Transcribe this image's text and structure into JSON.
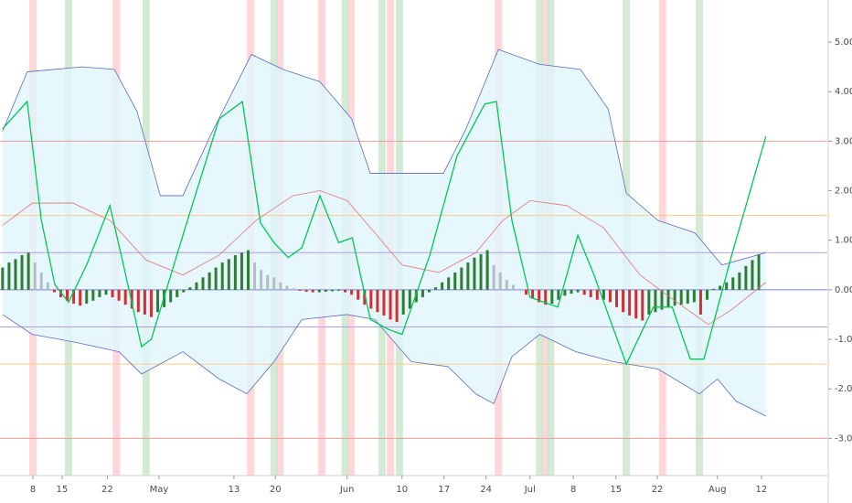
{
  "chart_data": {
    "type": "line",
    "xlim": [
      -0.4,
      127.6
    ],
    "ylim": [
      -3.75,
      5.85
    ],
    "yticks": [
      {
        "value": 5,
        "label": "5.00"
      },
      {
        "value": 4,
        "label": "4.00"
      },
      {
        "value": 3,
        "label": "3.00"
      },
      {
        "value": 2,
        "label": "2.00"
      },
      {
        "value": 1,
        "label": "1.00"
      },
      {
        "value": 0,
        "label": "0.00"
      },
      {
        "value": -1,
        "label": "-1.00"
      },
      {
        "value": -2,
        "label": "-2.00"
      },
      {
        "value": -3,
        "label": "-3.00"
      }
    ],
    "xticks": [
      {
        "value": 4.7,
        "label": "8"
      },
      {
        "value": 9.2,
        "label": "15"
      },
      {
        "value": 16.2,
        "label": "22"
      },
      {
        "value": 24.2,
        "label": "May"
      },
      {
        "value": 35.8,
        "label": "13"
      },
      {
        "value": 42.2,
        "label": "20"
      },
      {
        "value": 53.3,
        "label": "Jun"
      },
      {
        "value": 61.8,
        "label": "10"
      },
      {
        "value": 68.3,
        "label": "17"
      },
      {
        "value": 74.8,
        "label": "24"
      },
      {
        "value": 81.6,
        "label": "Jul"
      },
      {
        "value": 88.3,
        "label": "8"
      },
      {
        "value": 94.9,
        "label": "15"
      },
      {
        "value": 101.3,
        "label": "22"
      },
      {
        "value": 110.6,
        "label": "Aug"
      },
      {
        "value": 117.4,
        "label": "12"
      }
    ],
    "levels": [
      {
        "value": 3,
        "color": "#ef9a9a"
      },
      {
        "value": 1.5,
        "color": "#ffcc80"
      },
      {
        "value": 0.75,
        "color": "#b39ddb"
      },
      {
        "value": 0,
        "color": "#7986cb"
      },
      {
        "value": -0.75,
        "color": "#b39ddb"
      },
      {
        "value": -1.5,
        "color": "#ffcc80"
      },
      {
        "value": -3,
        "color": "#ef9a9a"
      }
    ],
    "highlights": {
      "red_color": "#ffcdd2",
      "green_color": "#c8e6c9",
      "red_x": [
        4.7,
        17.6,
        38.4,
        42.9,
        49.4,
        53.9,
        60,
        76.7,
        84,
        102.1
      ],
      "green_x": [
        10.2,
        22.2,
        42,
        53,
        58.7,
        61.4,
        83.1,
        84.8,
        96.5,
        107.8
      ]
    },
    "band_fill": "#e1f5fe",
    "histogram": {
      "up_color": "#2e7d32",
      "down_color": "#d32f2f",
      "fade_color": "#b0bec5",
      "values": [
        0.45,
        0.55,
        0.62,
        0.7,
        0.75,
        0.55,
        0.35,
        0.15,
        -0.05,
        -0.15,
        -0.22,
        -0.28,
        -0.32,
        -0.28,
        -0.22,
        -0.15,
        -0.1,
        -0.15,
        -0.22,
        -0.3,
        -0.38,
        -0.45,
        -0.5,
        -0.55,
        -0.45,
        -0.35,
        -0.25,
        -0.15,
        -0.05,
        0.05,
        0.15,
        0.25,
        0.35,
        0.45,
        0.55,
        0.62,
        0.7,
        0.75,
        0.8,
        0.55,
        0.4,
        0.3,
        0.25,
        0.15,
        0.08,
        0.03,
        -0.02,
        -0.04,
        -0.05,
        -0.05,
        -0.04,
        -0.03,
        -0.02,
        -0.05,
        -0.1,
        -0.2,
        -0.3,
        -0.38,
        -0.45,
        -0.52,
        -0.6,
        -0.65,
        -0.5,
        -0.38,
        -0.25,
        -0.15,
        -0.05,
        0.05,
        0.15,
        0.25,
        0.35,
        0.45,
        0.55,
        0.65,
        0.72,
        0.8,
        0.5,
        0.35,
        0.2,
        0.1,
        0.02,
        -0.1,
        -0.18,
        -0.25,
        -0.3,
        -0.28,
        -0.2,
        -0.12,
        -0.08,
        -0.05,
        -0.1,
        -0.15,
        -0.2,
        -0.2,
        -0.25,
        -0.35,
        -0.45,
        -0.52,
        -0.58,
        -0.62,
        -0.5,
        -0.45,
        -0.4,
        -0.35,
        -0.32,
        -0.3,
        -0.28,
        -0.25,
        -0.5,
        -0.2,
        0.02,
        0.08,
        0.15,
        0.25,
        0.35,
        0.48,
        0.6,
        0.72
      ]
    },
    "series": [
      {
        "color": "#5c6bc0",
        "x": [
          0,
          3.8,
          8.1,
          12.3,
          17.3,
          20.8,
          24.4,
          27.9,
          32.1,
          38.5,
          43.4,
          49.1,
          54,
          56.9,
          61.8,
          68.2,
          71.7,
          76.7,
          83.1,
          89.4,
          93.7,
          96.5,
          101.4,
          107.1,
          111.3,
          118.1
        ],
        "values": [
          3.2,
          4.4,
          4.45,
          4.5,
          4.45,
          3.6,
          1.9,
          1.9,
          3.1,
          4.75,
          4.45,
          4.2,
          3.45,
          2.35,
          2.35,
          2.35,
          3.25,
          4.85,
          4.55,
          4.45,
          3.65,
          1.95,
          1.4,
          1.15,
          0.5,
          0.75
        ]
      },
      {
        "color": "#5c6bc0",
        "x": [
          0,
          4.6,
          10.9,
          18,
          21.5,
          27.9,
          33.5,
          37.8,
          42,
          46.3,
          53.3,
          57.6,
          63.2,
          68.9,
          73.2,
          76,
          78.8,
          83.1,
          88.7,
          94.4,
          101.4,
          107.8,
          110.6,
          113.5,
          118.1
        ],
        "values": [
          -0.5,
          -0.9,
          -1.05,
          -1.25,
          -1.7,
          -1.25,
          -1.8,
          -2.1,
          -1.45,
          -0.6,
          -0.5,
          -0.6,
          -1.45,
          -1.55,
          -2.1,
          -2.3,
          -1.35,
          -0.9,
          -1.25,
          -1.45,
          -1.6,
          -2.1,
          -1.8,
          -2.25,
          -2.55
        ]
      },
      {
        "color": "#e57373",
        "x": [
          0,
          4.6,
          10.9,
          16.6,
          22.2,
          27.9,
          33.5,
          39.2,
          44.9,
          49.1,
          53.3,
          57.6,
          61.8,
          67.5,
          73.2,
          77.4,
          81.6,
          87.3,
          93,
          98.6,
          104.3,
          109.2,
          112.8,
          118.1
        ],
        "values": [
          1.3,
          1.75,
          1.75,
          1.4,
          0.6,
          0.3,
          0.7,
          1.4,
          1.9,
          2,
          1.8,
          1.15,
          0.5,
          0.35,
          0.75,
          1.4,
          1.8,
          1.7,
          1.25,
          0.3,
          -0.25,
          -0.7,
          -0.4,
          0.15
        ]
      },
      {
        "color": "#00c853",
        "x": [
          0,
          3.8,
          6,
          8.1,
          10.2,
          13,
          16.6,
          18.7,
          21.5,
          23,
          28.6,
          33.5,
          37.1,
          39.9,
          42,
          44.2,
          46.3,
          49.1,
          52,
          54.1,
          56.9,
          59.7,
          61.8,
          66.1,
          70.3,
          74.6,
          76.4,
          78.8,
          81.6,
          85.9,
          89,
          91.5,
          93.7,
          96.5,
          100.7,
          103.6,
          106.4,
          108.5,
          112.8,
          118.1
        ],
        "values": [
          3.25,
          3.8,
          1.4,
          0.1,
          -0.25,
          0.5,
          1.7,
          0.5,
          -1.15,
          -1,
          1.4,
          3.45,
          3.8,
          1.35,
          0.95,
          0.65,
          0.85,
          1.9,
          0.95,
          1.05,
          -0.6,
          -0.8,
          -0.9,
          0.7,
          2.7,
          3.75,
          3.8,
          1.4,
          -0.15,
          -0.35,
          1.1,
          0.3,
          -0.5,
          -1.5,
          -0.35,
          -0.35,
          -1.4,
          -1.4,
          0.7,
          3.1
        ]
      }
    ]
  }
}
